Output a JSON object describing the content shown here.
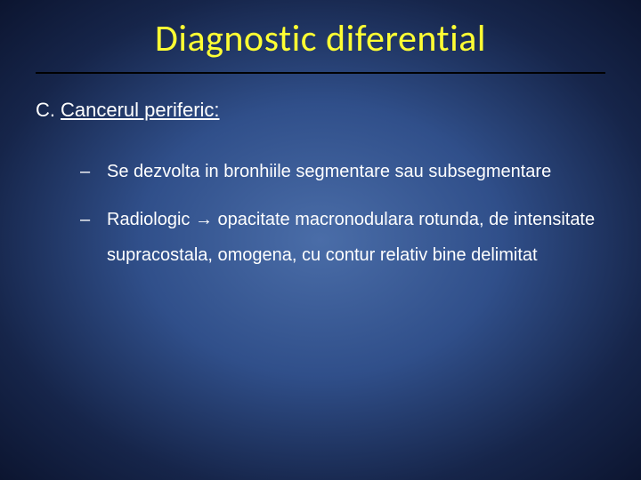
{
  "slide": {
    "title": "Diagnostic diferential",
    "title_color": "#ffff33",
    "title_fontsize": 42,
    "divider_color": "#000000",
    "background_gradient": [
      "#4a6da8",
      "#304f8a",
      "#16254a",
      "#0c1530"
    ],
    "section": {
      "letter": "C.",
      "label": "Cancerul periferic:",
      "label_underline": true,
      "fontsize": 22
    },
    "bullets": [
      "Se dezvolta in bronhiile segmentare sau subsegmentare",
      "Radiologic → opacitate macronodulara rotunda, de intensitate supracostala, omogena, cu contur relativ bine delimitat"
    ],
    "bullet_marker": "–",
    "bullet_fontsize": 20,
    "text_color": "#ffffff"
  }
}
